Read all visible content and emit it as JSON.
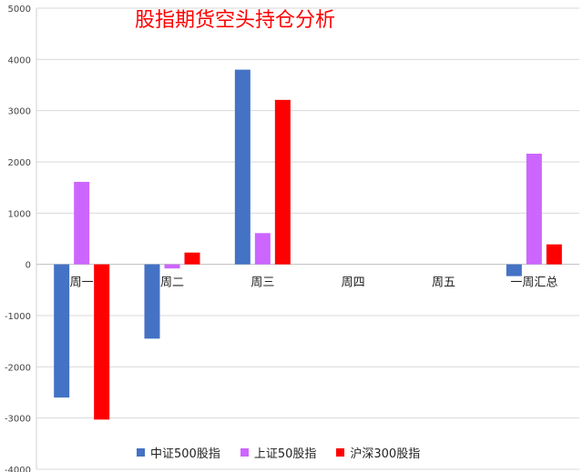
{
  "chart_data": {
    "type": "bar",
    "title": "股指期货空头持仓分析",
    "categories": [
      "周一",
      "周二",
      "周三",
      "周四",
      "周五",
      "一周汇总"
    ],
    "series": [
      {
        "name": "中证500股指",
        "color": "#4472C4",
        "values": [
          -2600,
          -1450,
          3800,
          null,
          null,
          -230
        ]
      },
      {
        "name": "上证50股指",
        "color": "#CC66FF",
        "values": [
          1610,
          -80,
          610,
          null,
          null,
          2160
        ]
      },
      {
        "name": "沪深300股指",
        "color": "#FF0000",
        "values": [
          -3030,
          230,
          3210,
          null,
          null,
          390
        ]
      }
    ],
    "ylim": [
      -4000,
      5000
    ],
    "yticks": [
      5000,
      4000,
      3000,
      2000,
      1000,
      0,
      -1000,
      -2000,
      -3000,
      -4000
    ],
    "ytick_labels": [
      "5000",
      "4000",
      "3000",
      "2000",
      "1000",
      "0",
      "-1000",
      "-2000",
      "-3000",
      "-4000"
    ],
    "grid": true,
    "legend_position": "bottom"
  }
}
